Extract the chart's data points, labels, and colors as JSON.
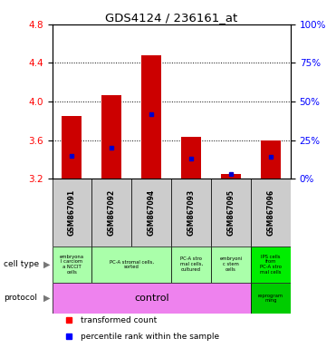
{
  "title": "GDS4124 / 236161_at",
  "samples": [
    "GSM867091",
    "GSM867092",
    "GSM867094",
    "GSM867093",
    "GSM867095",
    "GSM867096"
  ],
  "red_values": [
    3.85,
    4.07,
    4.48,
    3.63,
    3.25,
    3.6
  ],
  "blue_values_pct": [
    15,
    20,
    42,
    13,
    3,
    14
  ],
  "ylim": [
    3.2,
    4.8
  ],
  "ylim_right": [
    0,
    100
  ],
  "yticks_left": [
    3.2,
    3.6,
    4.0,
    4.4,
    4.8
  ],
  "yticks_right": [
    0,
    25,
    50,
    75,
    100
  ],
  "bar_color": "#cc0000",
  "blue_color": "#0000cc",
  "bar_width": 0.5,
  "cell_groups": [
    {
      "span": [
        0,
        0
      ],
      "text": "embryona\nl carciom\na NCCIT\ncells",
      "color": "#aaffaa"
    },
    {
      "span": [
        1,
        2
      ],
      "text": "PC-A stromal cells,\nsorted",
      "color": "#aaffaa"
    },
    {
      "span": [
        3,
        3
      ],
      "text": "PC-A stro\nmal cells,\ncultured",
      "color": "#aaffaa"
    },
    {
      "span": [
        4,
        4
      ],
      "text": "embryoni\nc stem\ncells",
      "color": "#aaffaa"
    },
    {
      "span": [
        5,
        5
      ],
      "text": "IPS cells\nfrom\nPC-A stro\nmal cells",
      "color": "#00ee00"
    }
  ],
  "protocol_control_span": [
    0,
    4
  ],
  "protocol_reprog_span": [
    5,
    5
  ],
  "protocol_control_color": "#ee82ee",
  "protocol_reprog_color": "#00cc00",
  "protocol_control_text": "control",
  "protocol_reprog_text": "reprogram\nming"
}
